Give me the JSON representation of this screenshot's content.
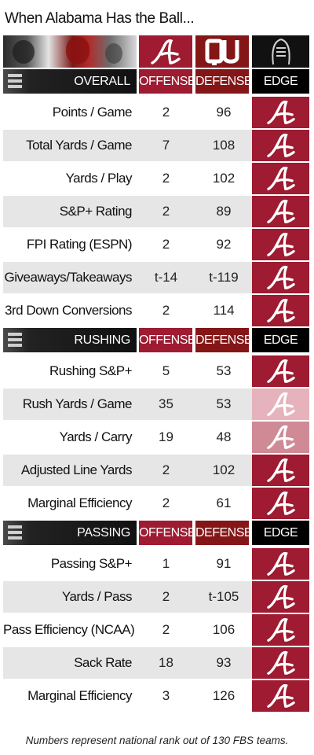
{
  "title": "When Alabama Has the Ball...",
  "colors": {
    "bama_crimson": "#9e1b32",
    "ou_crimson": "#841617",
    "edge_strong": "#9e1b32",
    "edge_medium": "#d08a96",
    "edge_light": "#e6b3bc"
  },
  "icons": {
    "offense_logo": "alabama-script-a-icon",
    "defense_logo": "oklahoma-ou-icon",
    "edge_logo": "playoff-trophy-icon",
    "edge_mark": "alabama-script-a-icon"
  },
  "chart_data": {
    "type": "table",
    "title": "When Alabama Has the Ball...",
    "columns": [
      "OFFENSE",
      "DEFENSE",
      "EDGE"
    ],
    "sections": [
      {
        "name": "OVERALL",
        "headers": {
          "offense": "OFFENSE",
          "defense": "DEFENSE",
          "edge": "EDGE"
        },
        "rows": [
          {
            "label": "Points / Game",
            "offense": "2",
            "defense": "96",
            "edge": "Alabama",
            "edge_strength": "strong"
          },
          {
            "label": "Total Yards / Game",
            "offense": "7",
            "defense": "108",
            "edge": "Alabama",
            "edge_strength": "strong"
          },
          {
            "label": "Yards / Play",
            "offense": "2",
            "defense": "102",
            "edge": "Alabama",
            "edge_strength": "strong"
          },
          {
            "label": "S&P+ Rating",
            "offense": "2",
            "defense": "89",
            "edge": "Alabama",
            "edge_strength": "strong"
          },
          {
            "label": "FPI Rating (ESPN)",
            "offense": "2",
            "defense": "92",
            "edge": "Alabama",
            "edge_strength": "strong"
          },
          {
            "label": "Giveaways/Takeaways",
            "offense": "t-14",
            "defense": "t-119",
            "edge": "Alabama",
            "edge_strength": "strong"
          },
          {
            "label": "3rd Down Conversions",
            "offense": "2",
            "defense": "114",
            "edge": "Alabama",
            "edge_strength": "strong"
          }
        ]
      },
      {
        "name": "RUSHING",
        "headers": {
          "offense": "OFFENSE",
          "defense": "DEFENSE",
          "edge": "EDGE"
        },
        "rows": [
          {
            "label": "Rushing S&P+",
            "offense": "5",
            "defense": "53",
            "edge": "Alabama",
            "edge_strength": "strong"
          },
          {
            "label": "Rush Yards / Game",
            "offense": "35",
            "defense": "53",
            "edge": "Alabama",
            "edge_strength": "light"
          },
          {
            "label": "Yards / Carry",
            "offense": "19",
            "defense": "48",
            "edge": "Alabama",
            "edge_strength": "medium"
          },
          {
            "label": "Adjusted Line Yards",
            "offense": "2",
            "defense": "102",
            "edge": "Alabama",
            "edge_strength": "strong"
          },
          {
            "label": "Marginal Efficiency",
            "offense": "2",
            "defense": "61",
            "edge": "Alabama",
            "edge_strength": "strong"
          }
        ]
      },
      {
        "name": "PASSING",
        "headers": {
          "offense": "OFFENSE",
          "defense": "DEFENSE",
          "edge": "EDGE"
        },
        "rows": [
          {
            "label": "Passing S&P+",
            "offense": "1",
            "defense": "91",
            "edge": "Alabama",
            "edge_strength": "strong"
          },
          {
            "label": "Yards / Pass",
            "offense": "2",
            "defense": "t-105",
            "edge": "Alabama",
            "edge_strength": "strong"
          },
          {
            "label": "Pass Efficiency (NCAA)",
            "offense": "2",
            "defense": "106",
            "edge": "Alabama",
            "edge_strength": "strong"
          },
          {
            "label": "Sack Rate",
            "offense": "18",
            "defense": "93",
            "edge": "Alabama",
            "edge_strength": "strong"
          },
          {
            "label": "Marginal Efficiency",
            "offense": "3",
            "defense": "126",
            "edge": "Alabama",
            "edge_strength": "strong"
          }
        ]
      }
    ]
  },
  "footnote": "Numbers represent national rank out of 130 FBS teams."
}
